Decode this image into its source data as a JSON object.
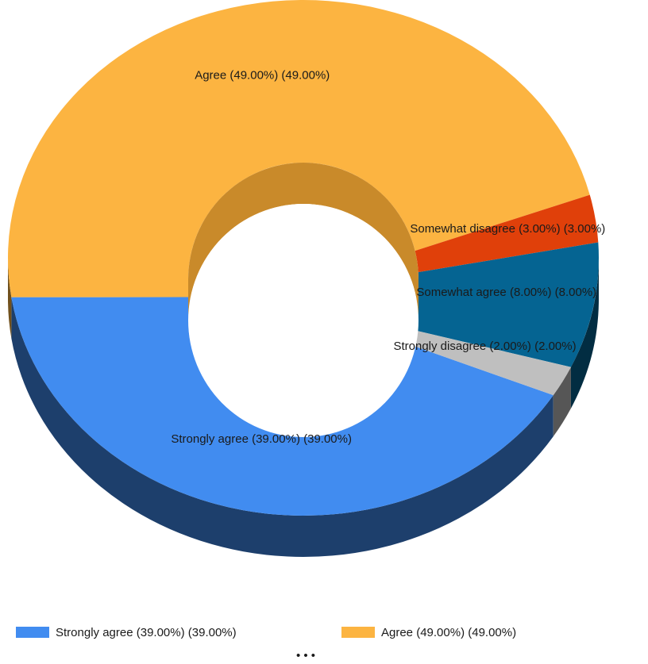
{
  "chart_data": {
    "type": "pie",
    "categories": [
      "Strongly agree (39.00%) (39.00%)",
      "Agree (49.00%) (49.00%)",
      "Somewhat disagree (3.00%) (3.00%)",
      "Somewhat agree (8.00%) (8.00%)",
      "Strongly disagree (2.00%) (2.00%)"
    ],
    "values": [
      39,
      49,
      3,
      8,
      2
    ],
    "colors": [
      "#418cf0",
      "#fcb441",
      "#e0400a",
      "#056492",
      "#bfbfbf"
    ],
    "legend_overflow": "• • •"
  }
}
